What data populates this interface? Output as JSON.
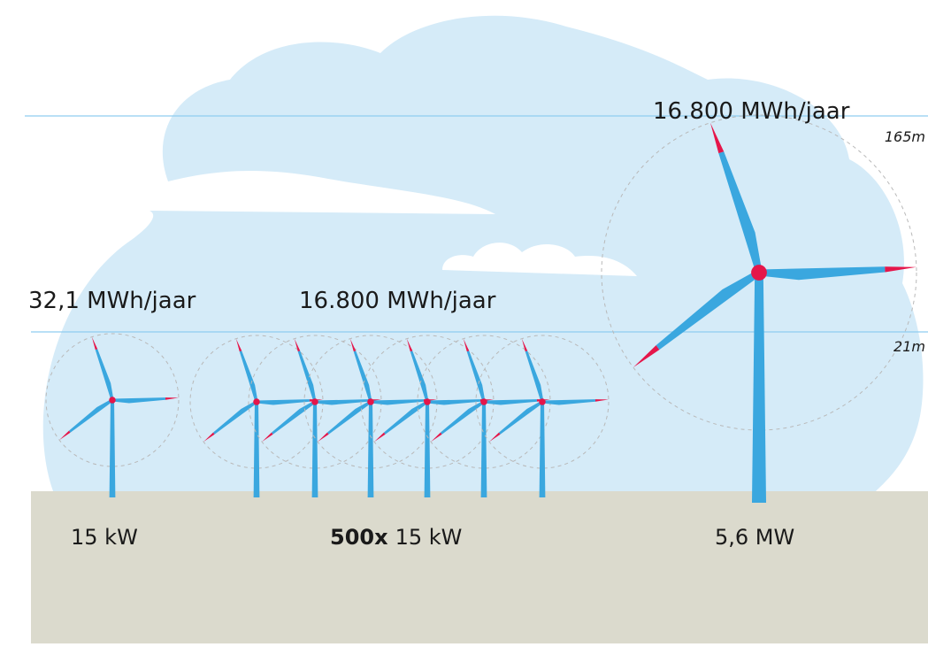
{
  "small_turbine": {
    "yield": "32,1 MWh/jaar",
    "power": "15 kW"
  },
  "wind_farm": {
    "yield": "16.800 MWh/jaar",
    "count": "500x",
    "power": "15 kW"
  },
  "large_turbine": {
    "yield": "16.800 MWh/jaar",
    "power": "5,6 MW"
  },
  "heights": {
    "top": "165m",
    "low": "21m"
  }
}
